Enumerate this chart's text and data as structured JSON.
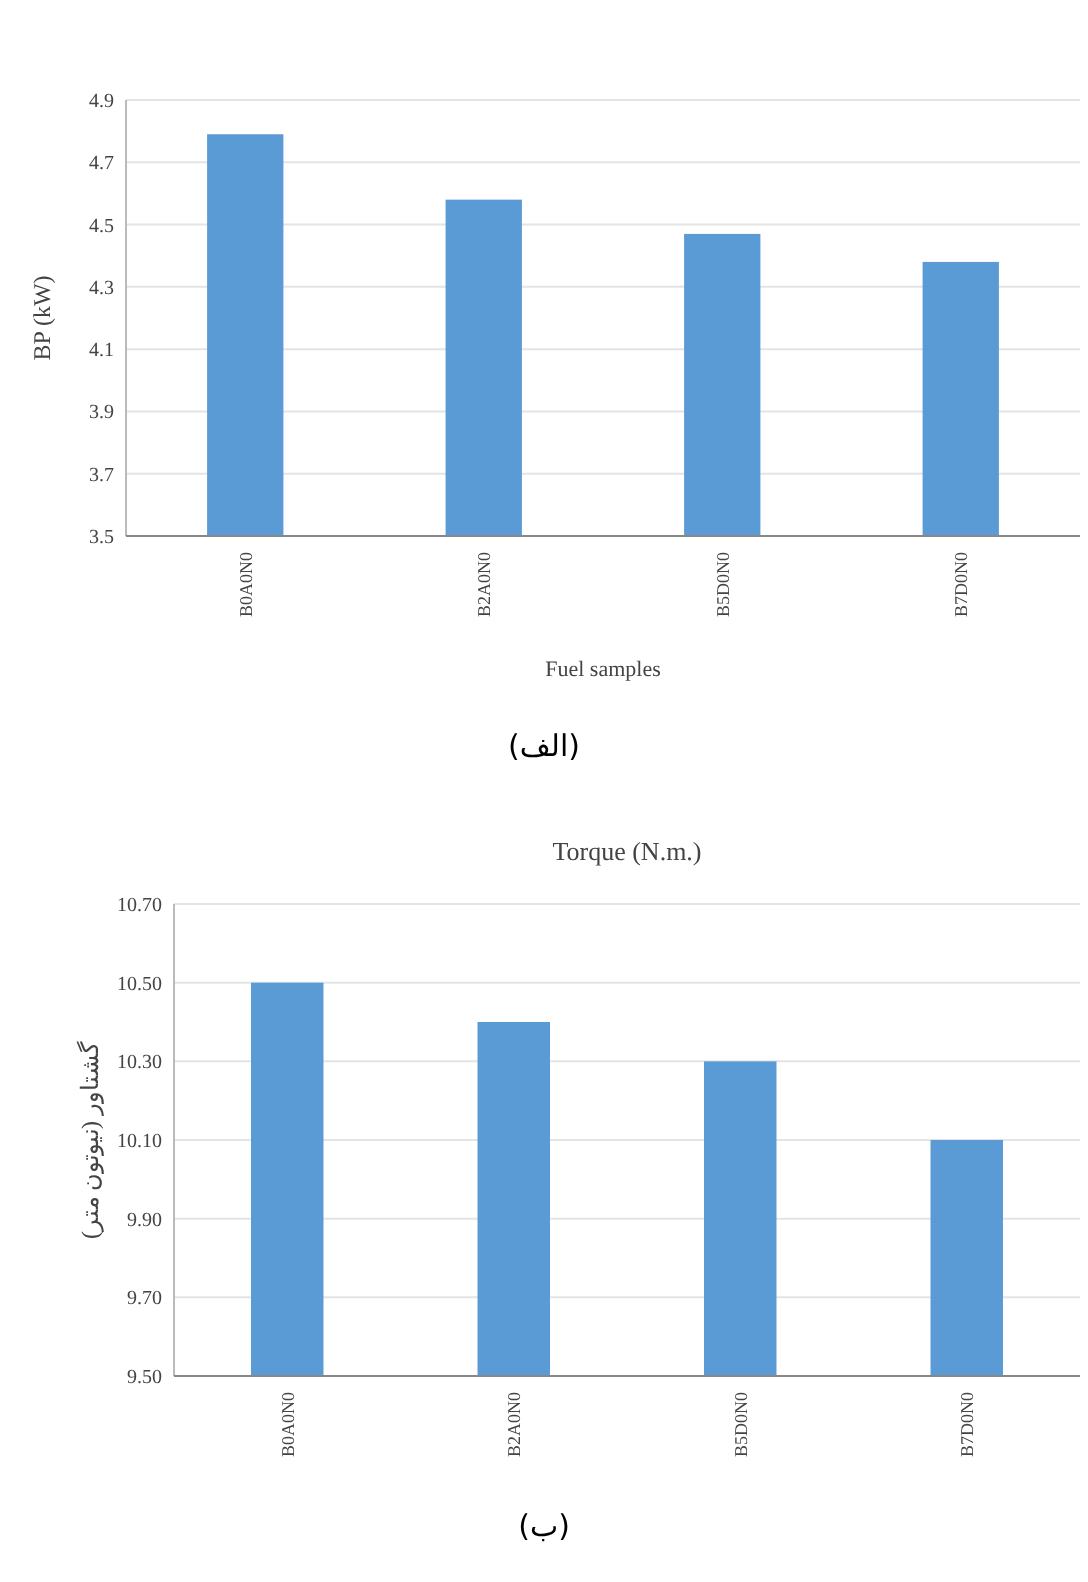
{
  "chart_data": [
    {
      "type": "bar",
      "categories": [
        "B0A0N0",
        "B2A0N0",
        "B5D0N0",
        "B7D0N0"
      ],
      "values": [
        4.79,
        4.58,
        4.47,
        4.38
      ],
      "color": "#5b9bd5",
      "ylabel": "BP (kW)",
      "xlabel": "Fuel samples",
      "ylim": [
        3.5,
        4.9
      ],
      "yticks": [
        3.5,
        3.7,
        3.9,
        4.1,
        4.3,
        4.5,
        4.7,
        4.9
      ],
      "grid": "y",
      "annotations": [
        "(الف)"
      ]
    },
    {
      "type": "bar",
      "title": "Torque (N.m.)",
      "categories": [
        "B0A0N0",
        "B2A0N0",
        "B5D0N0",
        "B7D0N0"
      ],
      "values": [
        10.5,
        10.4,
        10.3,
        10.1
      ],
      "color": "#5b9bd5",
      "ylabel": "گشتاور (نیوتون متر)",
      "ylim": [
        9.5,
        10.7
      ],
      "yticks": [
        {
          "value": 9.5,
          "label": "9.50"
        },
        {
          "value": 9.7,
          "label": "9.70"
        },
        {
          "value": 9.9,
          "label": "9.90"
        },
        {
          "value": 10.1,
          "label": "10.10"
        },
        {
          "value": 10.3,
          "label": "10.30"
        },
        {
          "value": 10.5,
          "label": "10.50"
        },
        {
          "value": 10.7,
          "label": "10.70"
        }
      ],
      "grid": "y",
      "annotations": [
        "(ب)"
      ]
    }
  ]
}
